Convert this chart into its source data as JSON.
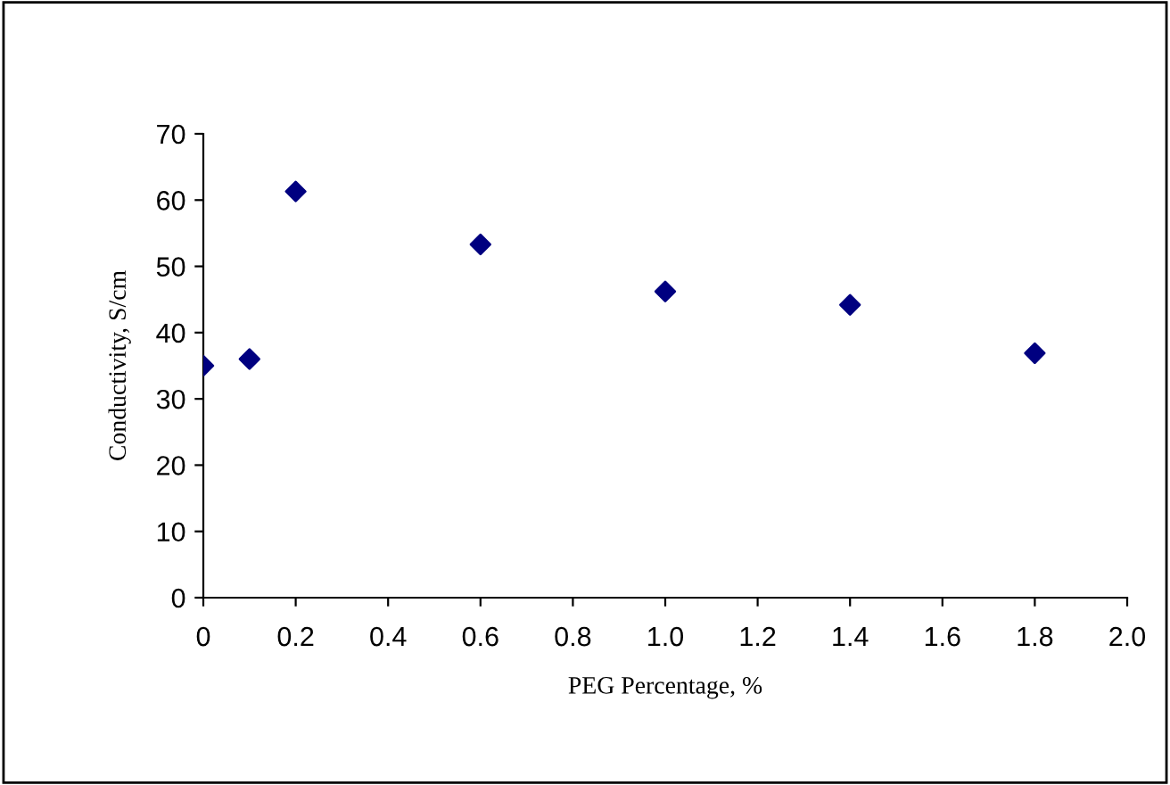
{
  "chart_data": {
    "type": "scatter",
    "xlabel": "PEG Percentage, %",
    "ylabel": "Conductivity, S/cm",
    "x": [
      0,
      0.1,
      0.2,
      0.6,
      1.0,
      1.4,
      1.8
    ],
    "series": [
      {
        "color": "#000080",
        "values": [
          35,
          36,
          61.3,
          53.3,
          46.2,
          44.2,
          36.9
        ]
      }
    ],
    "marker": "diamond",
    "xlim": [
      0,
      2.0
    ],
    "ylim": [
      0,
      70
    ],
    "xticks": [
      0,
      0.2,
      0.4,
      0.6,
      0.8,
      {
        "value": 1.0,
        "label": "1.0"
      },
      1.2,
      1.4,
      1.6,
      1.8,
      {
        "value": 2.0,
        "label": "2.0"
      }
    ],
    "yticks": [
      0,
      10,
      20,
      30,
      40,
      50,
      60,
      70
    ],
    "grid": false,
    "legend": false
  }
}
